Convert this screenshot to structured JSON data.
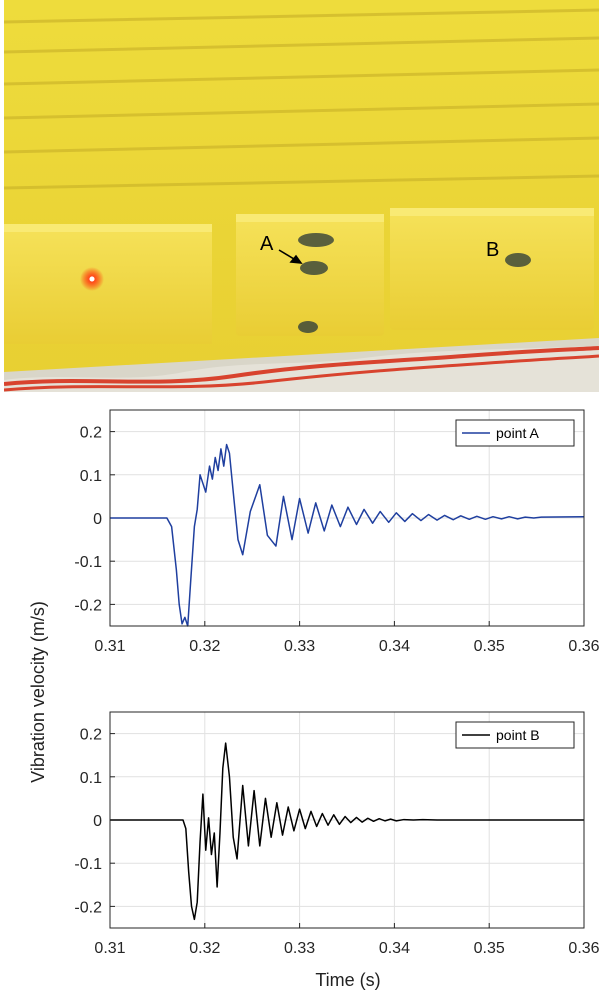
{
  "photo": {
    "label_a": "A",
    "label_b": "B",
    "colors": {
      "foam": "#f2dd3a",
      "laser": "#ff2a00",
      "tape": "#d8432e"
    }
  },
  "shared": {
    "ylabel": "Vibration velocity (m/s)",
    "xlabel": "Time (s)"
  },
  "chart_data": [
    {
      "type": "line",
      "series": [
        {
          "name": "point A",
          "color": "#1f3f9f",
          "x": [
            0.31,
            0.316,
            0.3165,
            0.317,
            0.3173,
            0.3176,
            0.3179,
            0.3182,
            0.3185,
            0.3189,
            0.3192,
            0.3195,
            0.3198,
            0.3201,
            0.3205,
            0.3208,
            0.3211,
            0.3214,
            0.3217,
            0.322,
            0.3223,
            0.3226,
            0.323,
            0.3235,
            0.324,
            0.3248,
            0.3258,
            0.3266,
            0.3275,
            0.3283,
            0.3292,
            0.33,
            0.3309,
            0.3317,
            0.3326,
            0.3334,
            0.3343,
            0.3351,
            0.336,
            0.3368,
            0.3377,
            0.3385,
            0.3394,
            0.3402,
            0.3411,
            0.3419,
            0.3428,
            0.3436,
            0.3445,
            0.3453,
            0.3462,
            0.347,
            0.3479,
            0.3487,
            0.3496,
            0.3504,
            0.3513,
            0.3521,
            0.353,
            0.3538,
            0.3547,
            0.3555,
            0.36
          ],
          "y": [
            0,
            0,
            -0.02,
            -0.12,
            -0.2,
            -0.245,
            -0.23,
            -0.25,
            -0.15,
            -0.02,
            0.02,
            0.1,
            0.08,
            0.06,
            0.12,
            0.09,
            0.14,
            0.11,
            0.16,
            0.12,
            0.17,
            0.15,
            0.06,
            -0.05,
            -0.085,
            0.015,
            0.077,
            -0.04,
            -0.065,
            0.05,
            -0.05,
            0.045,
            -0.035,
            0.035,
            -0.03,
            0.03,
            -0.02,
            0.025,
            -0.015,
            0.02,
            -0.012,
            0.015,
            -0.01,
            0.012,
            -0.008,
            0.01,
            -0.006,
            0.008,
            -0.005,
            0.006,
            -0.004,
            0.005,
            -0.003,
            0.004,
            -0.003,
            0.003,
            -0.002,
            0.003,
            -0.002,
            0.002,
            0.0,
            0.002,
            0.003
          ]
        }
      ],
      "xlim": [
        0.31,
        0.36
      ],
      "ylim": [
        -0.25,
        0.25
      ],
      "xticks": [
        "0.31",
        "0.32",
        "0.33",
        "0.34",
        "0.35",
        "0.36"
      ],
      "yticks": [
        "0.2",
        "0.1",
        "0",
        "-0.1",
        "-0.2"
      ],
      "ytick_values": [
        0.2,
        0.1,
        0,
        -0.1,
        -0.2
      ],
      "grid": true,
      "legend": "top-right"
    },
    {
      "type": "line",
      "series": [
        {
          "name": "point B",
          "color": "#000000",
          "x": [
            0.31,
            0.3177,
            0.318,
            0.3183,
            0.3186,
            0.3189,
            0.3192,
            0.3195,
            0.3198,
            0.3201,
            0.3204,
            0.3207,
            0.321,
            0.3213,
            0.3216,
            0.3219,
            0.3222,
            0.3226,
            0.323,
            0.3234,
            0.324,
            0.3246,
            0.3252,
            0.3258,
            0.3264,
            0.327,
            0.3276,
            0.3282,
            0.3288,
            0.3294,
            0.33,
            0.3306,
            0.3312,
            0.3318,
            0.3324,
            0.333,
            0.3336,
            0.3342,
            0.3348,
            0.3354,
            0.336,
            0.3366,
            0.3372,
            0.3378,
            0.3384,
            0.339,
            0.3396,
            0.3402,
            0.341,
            0.342,
            0.343,
            0.3445,
            0.36
          ],
          "y": [
            0,
            0,
            -0.02,
            -0.12,
            -0.2,
            -0.23,
            -0.19,
            -0.05,
            0.06,
            -0.07,
            0.005,
            -0.08,
            -0.03,
            -0.155,
            -0.03,
            0.12,
            0.178,
            0.1,
            -0.04,
            -0.09,
            0.08,
            -0.06,
            0.068,
            -0.06,
            0.05,
            -0.04,
            0.04,
            -0.035,
            0.03,
            -0.025,
            0.025,
            -0.02,
            0.02,
            -0.015,
            0.015,
            -0.012,
            0.012,
            -0.01,
            0.008,
            -0.006,
            0.006,
            -0.005,
            0.004,
            -0.003,
            0.003,
            -0.002,
            0.002,
            -0.002,
            0.001,
            0.0,
            0.001,
            0.0,
            0.0
          ]
        }
      ],
      "xlim": [
        0.31,
        0.36
      ],
      "ylim": [
        -0.25,
        0.25
      ],
      "xticks": [
        "0.31",
        "0.32",
        "0.33",
        "0.34",
        "0.35",
        "0.36"
      ],
      "yticks": [
        "0.2",
        "0.1",
        "0",
        "-0.1",
        "-0.2"
      ],
      "ytick_values": [
        0.2,
        0.1,
        0,
        -0.1,
        -0.2
      ],
      "grid": true,
      "legend": "top-right"
    }
  ]
}
